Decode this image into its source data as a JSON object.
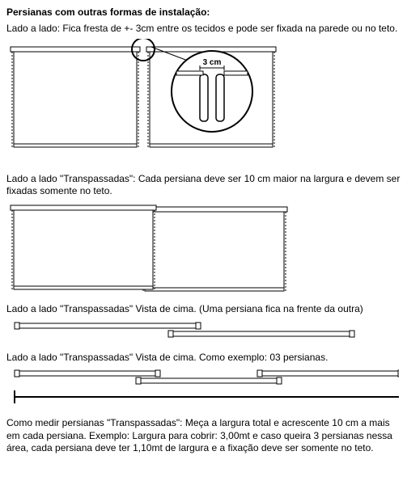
{
  "title": "Persianas com outras formas de instalação:",
  "section1": {
    "text": "Lado a lado: Fica fresta de +- 3cm entre os tecidos e pode ser fixada na parede ou no teto.",
    "gap_label": "3 cm",
    "blind_w": 160,
    "blind_h": 130,
    "gap": 8,
    "stroke": "#000000",
    "fill": "#ffffff"
  },
  "section2": {
    "text": "Lado a lado \"Transpassadas\": Cada persiana deve ser 10 cm maior na largura e devem ser fixadas somente no teto.",
    "blind_w": 180,
    "blind_h": 110,
    "overlap": 18,
    "stroke": "#000000",
    "fill": "#ffffff"
  },
  "section3": {
    "text": "Lado a lado \"Transpassadas\" Vista de cima. (Uma persiana fica na frente da outra)",
    "rod_w": 230,
    "rod_h": 6,
    "overlap": 40,
    "stroke": "#000000",
    "fill": "#ffffff"
  },
  "section4": {
    "text": "Lado a lado \"Transpassadas\" Vista de cima. Como exemplo: 03 persianas.",
    "rod_w": 180,
    "rod_h": 6,
    "overlap": 30,
    "stroke": "#000000",
    "fill": "#ffffff"
  },
  "footer": {
    "text": "Como medir persianas \"Transpassadas\": Meça a largura total e acrescente 10 cm a mais em cada persiana. Exemplo: Largura para cobrir: 3,00mt e caso queira 3 persianas nessa área, cada persiana deve ter 1,10mt de largura e a fixação deve ser somente no teto."
  }
}
